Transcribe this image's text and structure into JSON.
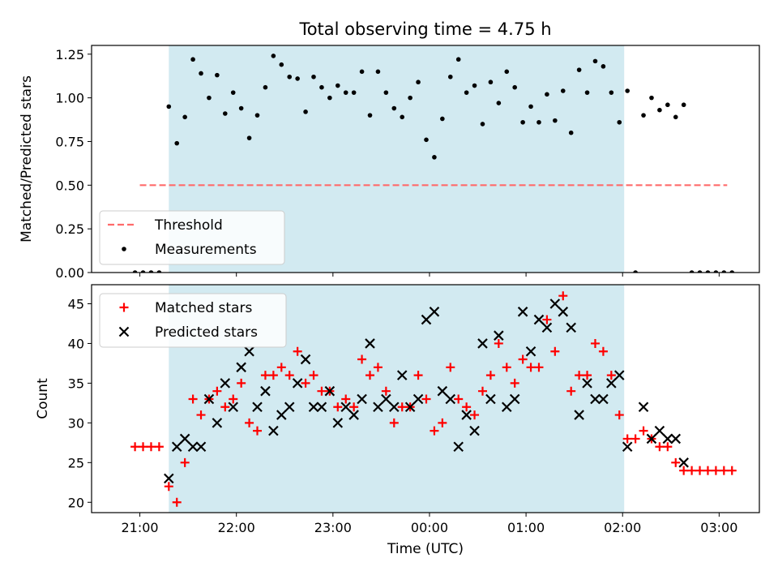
{
  "title": "Total observing time = 4.75 h",
  "chart_data": [
    {
      "type": "scatter",
      "panel": "top",
      "ylabel": "Matched/Predicted stars",
      "xlabel": "",
      "x_unit": "hours (UTC, continuing past midnight)",
      "ylim": [
        0,
        1.3
      ],
      "yticks": [
        0,
        0.25,
        0.5,
        0.75,
        1.0,
        1.25
      ],
      "ytick_labels": [
        "0.00",
        "0.25",
        "0.50",
        "0.75",
        "1.00",
        "1.25"
      ],
      "observing_window": {
        "start": "21:18",
        "end": "02:01",
        "color": "#add8e6"
      },
      "legend": {
        "position": "lower-left",
        "entries": [
          "Threshold",
          "Measurements"
        ]
      },
      "series": [
        {
          "name": "Threshold",
          "style": "dashed-line",
          "color": "#ff6b6b",
          "x": [
            "21:00",
            "03:05"
          ],
          "y": [
            0.5,
            0.5
          ]
        },
        {
          "name": "Measurements",
          "style": "dot",
          "color": "#000000",
          "points": [
            [
              "20:57",
              0
            ],
            [
              "21:02",
              0
            ],
            [
              "21:07",
              0
            ],
            [
              "21:12",
              0
            ],
            [
              "21:18",
              0.95
            ],
            [
              "21:23",
              0.74
            ],
            [
              "21:28",
              0.89
            ],
            [
              "21:33",
              1.22
            ],
            [
              "21:38",
              1.14
            ],
            [
              "21:43",
              1.0
            ],
            [
              "21:48",
              1.13
            ],
            [
              "21:53",
              0.91
            ],
            [
              "21:58",
              1.03
            ],
            [
              "22:03",
              0.94
            ],
            [
              "22:08",
              0.77
            ],
            [
              "22:13",
              0.9
            ],
            [
              "22:18",
              1.06
            ],
            [
              "22:23",
              1.24
            ],
            [
              "22:28",
              1.19
            ],
            [
              "22:33",
              1.12
            ],
            [
              "22:38",
              1.11
            ],
            [
              "22:43",
              0.92
            ],
            [
              "22:48",
              1.12
            ],
            [
              "22:53",
              1.06
            ],
            [
              "22:58",
              1.0
            ],
            [
              "23:03",
              1.07
            ],
            [
              "23:08",
              1.03
            ],
            [
              "23:13",
              1.03
            ],
            [
              "23:18",
              1.15
            ],
            [
              "23:23",
              0.9
            ],
            [
              "23:28",
              1.15
            ],
            [
              "23:33",
              1.03
            ],
            [
              "23:38",
              0.94
            ],
            [
              "23:43",
              0.89
            ],
            [
              "23:48",
              1.0
            ],
            [
              "23:53",
              1.09
            ],
            [
              "23:58",
              0.76
            ],
            [
              "00:03",
              0.66
            ],
            [
              "00:08",
              0.88
            ],
            [
              "00:13",
              1.12
            ],
            [
              "00:18",
              1.22
            ],
            [
              "00:23",
              1.03
            ],
            [
              "00:28",
              1.07
            ],
            [
              "00:33",
              0.85
            ],
            [
              "00:38",
              1.09
            ],
            [
              "00:43",
              0.97
            ],
            [
              "00:48",
              1.15
            ],
            [
              "00:53",
              1.06
            ],
            [
              "00:58",
              0.86
            ],
            [
              "01:03",
              0.95
            ],
            [
              "01:08",
              0.86
            ],
            [
              "01:13",
              1.02
            ],
            [
              "01:18",
              0.87
            ],
            [
              "01:23",
              1.04
            ],
            [
              "01:28",
              0.8
            ],
            [
              "01:33",
              1.16
            ],
            [
              "01:38",
              1.03
            ],
            [
              "01:43",
              1.21
            ],
            [
              "01:48",
              1.18
            ],
            [
              "01:53",
              1.03
            ],
            [
              "01:58",
              0.86
            ],
            [
              "02:03",
              1.04
            ],
            [
              "02:08",
              0
            ],
            [
              "02:13",
              0.9
            ],
            [
              "02:18",
              1.0
            ],
            [
              "02:23",
              0.93
            ],
            [
              "02:28",
              0.96
            ],
            [
              "02:33",
              0.89
            ],
            [
              "02:38",
              0.96
            ],
            [
              "02:43",
              0
            ],
            [
              "02:48",
              0
            ],
            [
              "02:53",
              0
            ],
            [
              "02:58",
              0
            ],
            [
              "03:03",
              0
            ],
            [
              "03:08",
              0
            ]
          ]
        }
      ]
    },
    {
      "type": "scatter",
      "panel": "bottom",
      "ylabel": "Count",
      "xlabel": "Time (UTC)",
      "ylim": [
        18.7,
        47.4
      ],
      "yticks": [
        20,
        25,
        30,
        35,
        40,
        45
      ],
      "ytick_labels": [
        "20",
        "25",
        "30",
        "35",
        "40",
        "45"
      ],
      "xticks": [
        "21:00",
        "22:00",
        "23:00",
        "00:00",
        "01:00",
        "02:00",
        "03:00"
      ],
      "xlim": [
        "20:30",
        "03:25"
      ],
      "observing_window": {
        "start": "21:18",
        "end": "02:01",
        "color": "#add8e6"
      },
      "legend": {
        "position": "top-left",
        "entries": [
          "Matched stars",
          "Predicted stars"
        ]
      },
      "series": [
        {
          "name": "Matched stars",
          "marker": "plus",
          "color": "#ff0000",
          "points": [
            [
              "20:57",
              27
            ],
            [
              "21:02",
              27
            ],
            [
              "21:07",
              27
            ],
            [
              "21:12",
              27
            ],
            [
              "21:18",
              22
            ],
            [
              "21:23",
              20
            ],
            [
              "21:28",
              25
            ],
            [
              "21:33",
              33
            ],
            [
              "21:38",
              31
            ],
            [
              "21:43",
              33
            ],
            [
              "21:48",
              34
            ],
            [
              "21:53",
              32
            ],
            [
              "21:58",
              33
            ],
            [
              "22:03",
              35
            ],
            [
              "22:08",
              30
            ],
            [
              "22:13",
              29
            ],
            [
              "22:18",
              36
            ],
            [
              "22:23",
              36
            ],
            [
              "22:28",
              37
            ],
            [
              "22:33",
              36
            ],
            [
              "22:38",
              39
            ],
            [
              "22:43",
              35
            ],
            [
              "22:48",
              36
            ],
            [
              "22:53",
              34
            ],
            [
              "22:58",
              34
            ],
            [
              "23:03",
              32
            ],
            [
              "23:08",
              33
            ],
            [
              "23:13",
              32
            ],
            [
              "23:18",
              38
            ],
            [
              "23:23",
              36
            ],
            [
              "23:28",
              37
            ],
            [
              "23:33",
              34
            ],
            [
              "23:38",
              30
            ],
            [
              "23:43",
              32
            ],
            [
              "23:48",
              32
            ],
            [
              "23:53",
              36
            ],
            [
              "23:58",
              33
            ],
            [
              "00:03",
              29
            ],
            [
              "00:08",
              30
            ],
            [
              "00:13",
              37
            ],
            [
              "00:18",
              33
            ],
            [
              "00:23",
              32
            ],
            [
              "00:28",
              31
            ],
            [
              "00:33",
              34
            ],
            [
              "00:38",
              36
            ],
            [
              "00:43",
              40
            ],
            [
              "00:48",
              37
            ],
            [
              "00:53",
              35
            ],
            [
              "00:58",
              38
            ],
            [
              "01:03",
              37
            ],
            [
              "01:08",
              37
            ],
            [
              "01:13",
              43
            ],
            [
              "01:18",
              39
            ],
            [
              "01:23",
              46
            ],
            [
              "01:28",
              34
            ],
            [
              "01:33",
              36
            ],
            [
              "01:38",
              36
            ],
            [
              "01:43",
              40
            ],
            [
              "01:48",
              39
            ],
            [
              "01:53",
              36
            ],
            [
              "01:58",
              31
            ],
            [
              "02:03",
              28
            ],
            [
              "02:08",
              28
            ],
            [
              "02:13",
              29
            ],
            [
              "02:18",
              28
            ],
            [
              "02:23",
              27
            ],
            [
              "02:28",
              27
            ],
            [
              "02:33",
              25
            ],
            [
              "02:38",
              24
            ],
            [
              "02:43",
              24
            ],
            [
              "02:48",
              24
            ],
            [
              "02:53",
              24
            ],
            [
              "02:58",
              24
            ],
            [
              "03:03",
              24
            ],
            [
              "03:08",
              24
            ]
          ]
        },
        {
          "name": "Predicted stars",
          "marker": "x",
          "color": "#000000",
          "points": [
            [
              "21:18",
              23
            ],
            [
              "21:23",
              27
            ],
            [
              "21:28",
              28
            ],
            [
              "21:33",
              27
            ],
            [
              "21:38",
              27
            ],
            [
              "21:43",
              33
            ],
            [
              "21:48",
              30
            ],
            [
              "21:53",
              35
            ],
            [
              "21:58",
              32
            ],
            [
              "22:03",
              37
            ],
            [
              "22:08",
              39
            ],
            [
              "22:13",
              32
            ],
            [
              "22:18",
              34
            ],
            [
              "22:23",
              29
            ],
            [
              "22:28",
              31
            ],
            [
              "22:33",
              32
            ],
            [
              "22:38",
              35
            ],
            [
              "22:43",
              38
            ],
            [
              "22:48",
              32
            ],
            [
              "22:53",
              32
            ],
            [
              "22:58",
              34
            ],
            [
              "23:03",
              30
            ],
            [
              "23:08",
              32
            ],
            [
              "23:13",
              31
            ],
            [
              "23:18",
              33
            ],
            [
              "23:23",
              40
            ],
            [
              "23:28",
              32
            ],
            [
              "23:33",
              33
            ],
            [
              "23:38",
              32
            ],
            [
              "23:43",
              36
            ],
            [
              "23:48",
              32
            ],
            [
              "23:53",
              33
            ],
            [
              "23:58",
              43
            ],
            [
              "00:03",
              44
            ],
            [
              "00:08",
              34
            ],
            [
              "00:13",
              33
            ],
            [
              "00:18",
              27
            ],
            [
              "00:23",
              31
            ],
            [
              "00:28",
              29
            ],
            [
              "00:33",
              40
            ],
            [
              "00:38",
              33
            ],
            [
              "00:43",
              41
            ],
            [
              "00:48",
              32
            ],
            [
              "00:53",
              33
            ],
            [
              "00:58",
              44
            ],
            [
              "01:03",
              39
            ],
            [
              "01:08",
              43
            ],
            [
              "01:13",
              42
            ],
            [
              "01:18",
              45
            ],
            [
              "01:23",
              44
            ],
            [
              "01:28",
              42
            ],
            [
              "01:33",
              31
            ],
            [
              "01:38",
              35
            ],
            [
              "01:43",
              33
            ],
            [
              "01:48",
              33
            ],
            [
              "01:53",
              35
            ],
            [
              "01:58",
              36
            ],
            [
              "02:03",
              27
            ],
            [
              "02:13",
              32
            ],
            [
              "02:18",
              28
            ],
            [
              "02:23",
              29
            ],
            [
              "02:28",
              28
            ],
            [
              "02:33",
              28
            ],
            [
              "02:38",
              25
            ]
          ]
        }
      ]
    }
  ]
}
